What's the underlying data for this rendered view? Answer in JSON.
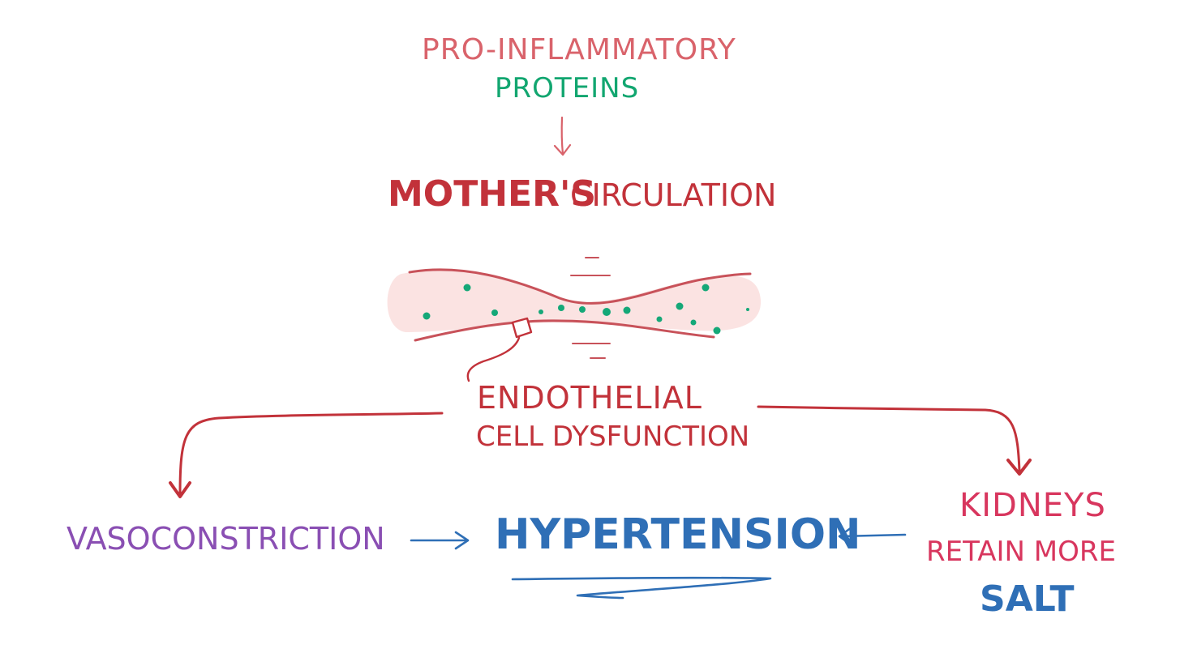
{
  "nodes": {
    "pro_inflammatory": "Pro-inflammatory",
    "proteins": "Proteins",
    "mothers": "Mother's",
    "circulation": "Circulation",
    "endothelial": "Endothelial",
    "cell_dysfunction": "Cell dysfunction",
    "vasoconstriction": "Vasoconstriction",
    "hypertension": "Hypertension",
    "kidneys": "Kidneys",
    "retain_more": "Retain more",
    "salt": "Salt"
  },
  "colors": {
    "salmon": "#d9636b",
    "green": "#12a670",
    "dark_red": "#c2323a",
    "crimson": "#c0304a",
    "purple": "#8a4fb3",
    "blue": "#2f6fb6",
    "pink": "#d8365e",
    "vessel_fill": "#fbe3e2",
    "vessel_wall": "#c8525a",
    "dot": "#15a878"
  },
  "icons": {
    "vessel": "blood-vessel-icon",
    "cell": "endothelial-cell-icon"
  }
}
